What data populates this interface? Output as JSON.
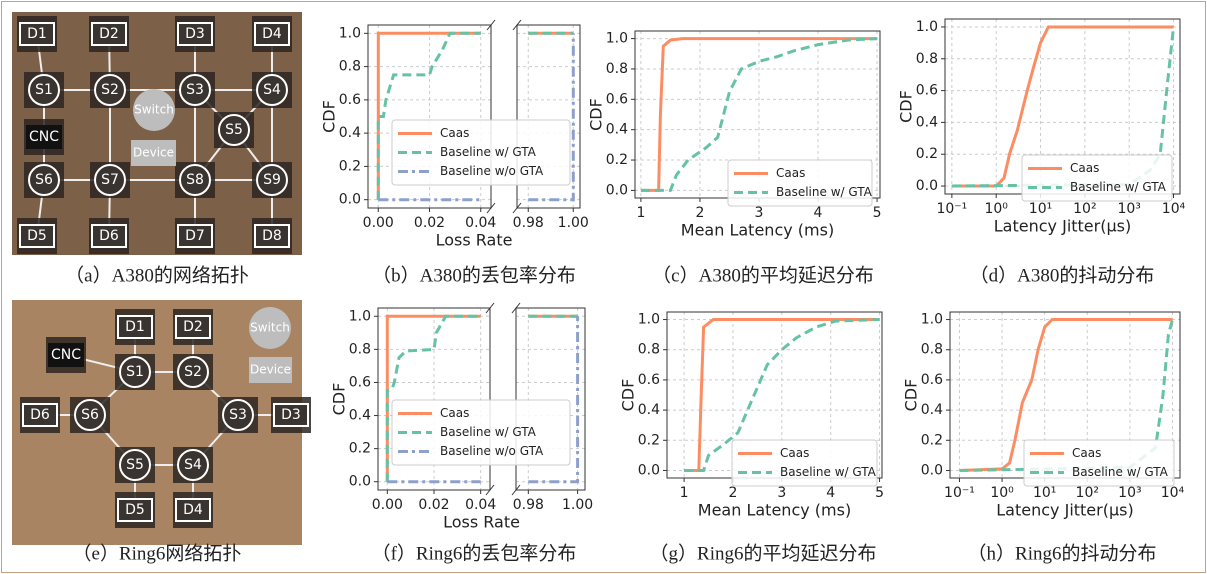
{
  "topologies": [
    {
      "caption": "（a）A380的网络拓扑",
      "nodes": [
        "D1",
        "D2",
        "D3",
        "D4",
        "S1",
        "S2",
        "S3",
        "S4",
        "CNC",
        "S5",
        "S6",
        "S7",
        "S8",
        "S9",
        "D5",
        "D6",
        "D7",
        "D8"
      ],
      "legend": [
        "Switch",
        "Device"
      ]
    },
    {
      "caption": "（e）Ring6网络拓扑",
      "nodes": [
        "D1",
        "D2",
        "CNC",
        "S1",
        "S2",
        "D6",
        "S6",
        "S3",
        "D3",
        "S5",
        "S4",
        "D5",
        "D4"
      ],
      "legend": [
        "Switch",
        "Device"
      ]
    }
  ],
  "chart_data": [
    {
      "type": "line",
      "caption": "（b）A380的丢包率分布",
      "xlabel": "Loss Rate",
      "ylabel": "CDF",
      "xlim": [
        -0.004,
        1.003
      ],
      "xbreak": [
        0.044,
        0.975
      ],
      "xticks": [
        {
          "value": 0,
          "label": "0.00"
        },
        0.02,
        0.04,
        0.98,
        {
          "value": 1,
          "label": "1.00"
        }
      ],
      "ylim": [
        -0.05,
        1.05
      ],
      "yticks": [
        {
          "value": 0,
          "label": "0.0"
        },
        0.2,
        0.4,
        0.6,
        0.8,
        {
          "value": 1,
          "label": "1.0"
        }
      ],
      "grid": true,
      "series": [
        {
          "name": "Caas",
          "color": "#fc8d62",
          "linestyle": "solid",
          "x": [
            0,
            0,
            0.04,
            0.98,
            1
          ],
          "values": [
            0,
            1,
            1,
            1,
            1
          ]
        },
        {
          "name": "Baseline w/ GTA",
          "color": "#66c2a5",
          "linestyle": "dashed",
          "x": [
            0,
            0,
            0.002,
            0.003,
            0.004,
            0.006,
            0.02,
            0.021,
            0.025,
            0.028,
            0.04,
            0.98,
            1
          ],
          "values": [
            0,
            0.5,
            0.5,
            0.6,
            0.65,
            0.75,
            0.75,
            0.8,
            0.9,
            1,
            1,
            1,
            1
          ]
        },
        {
          "name": "Baseline w/o GTA",
          "color": "#8da0cb",
          "linestyle": "dashdot",
          "x": [
            0,
            0.04,
            0.98,
            1,
            1
          ],
          "values": [
            0,
            0,
            0,
            0,
            1
          ]
        }
      ]
    },
    {
      "type": "line",
      "caption": "（c）A380的平均延迟分布",
      "xlabel": "Mean Latency (ms)",
      "ylabel": "CDF",
      "xlim": [
        0.9,
        5.05
      ],
      "xticks": [
        1,
        2,
        3,
        4,
        5
      ],
      "ylim": [
        -0.05,
        1.05
      ],
      "yticks": [
        {
          "value": 0,
          "label": "0.0"
        },
        0.2,
        0.4,
        0.6,
        0.8,
        {
          "value": 1,
          "label": "1.0"
        }
      ],
      "grid": true,
      "series": [
        {
          "name": "Caas",
          "color": "#fc8d62",
          "linestyle": "solid",
          "x": [
            1,
            1.3,
            1.33,
            1.38,
            1.5,
            1.7,
            5
          ],
          "values": [
            0,
            0,
            0.5,
            0.95,
            0.99,
            1,
            1
          ]
        },
        {
          "name": "Baseline w/ GTA",
          "color": "#66c2a5",
          "linestyle": "dashed",
          "x": [
            1,
            1.5,
            1.6,
            1.8,
            2.1,
            2.3,
            2.4,
            2.5,
            2.7,
            3,
            3.3,
            3.6,
            4,
            4.5,
            5
          ],
          "values": [
            0,
            0,
            0.1,
            0.2,
            0.28,
            0.35,
            0.5,
            0.65,
            0.8,
            0.85,
            0.88,
            0.92,
            0.96,
            0.99,
            1
          ]
        }
      ]
    },
    {
      "type": "line",
      "caption": "（d）A380的抖动分布",
      "xlabel": "Latency Jitter(μs)",
      "ylabel": "CDF",
      "xscale": "log",
      "xlim": [
        0.07,
        14000
      ],
      "xticks": [
        {
          "value": 0.1,
          "label": "10⁻¹"
        },
        {
          "value": 1,
          "label": "10⁰"
        },
        {
          "value": 10,
          "label": "10¹"
        },
        {
          "value": 100,
          "label": "10²"
        },
        {
          "value": 1000,
          "label": "10³"
        },
        {
          "value": 10000,
          "label": "10⁴"
        }
      ],
      "ylim": [
        -0.05,
        1.05
      ],
      "yticks": [
        {
          "value": 0,
          "label": "0.0"
        },
        0.2,
        0.4,
        0.6,
        0.8,
        {
          "value": 1,
          "label": "1.0"
        }
      ],
      "grid": true,
      "series": [
        {
          "name": "Caas",
          "color": "#fc8d62",
          "linestyle": "solid",
          "x": [
            0.1,
            1,
            1.5,
            2,
            3,
            5,
            7,
            10,
            15,
            10000
          ],
          "values": [
            0,
            0,
            0.05,
            0.2,
            0.35,
            0.6,
            0.75,
            0.9,
            1,
            1
          ]
        },
        {
          "name": "Baseline w/ GTA",
          "color": "#66c2a5",
          "linestyle": "dashed",
          "x": [
            0.1,
            1000,
            3000,
            5000,
            7000,
            10000
          ],
          "values": [
            0,
            0.01,
            0.1,
            0.2,
            0.6,
            1
          ]
        }
      ]
    },
    {
      "type": "line",
      "caption": "（f）Ring6的丢包率分布",
      "xlabel": "Loss Rate",
      "ylabel": "CDF",
      "xlim": [
        -0.004,
        1.003
      ],
      "xbreak": [
        0.044,
        0.975
      ],
      "xticks": [
        {
          "value": 0,
          "label": "0.00"
        },
        0.02,
        0.04,
        0.98,
        {
          "value": 1,
          "label": "1.00"
        }
      ],
      "ylim": [
        -0.05,
        1.05
      ],
      "yticks": [
        {
          "value": 0,
          "label": "0.0"
        },
        0.2,
        0.4,
        0.6,
        0.8,
        {
          "value": 1,
          "label": "1.0"
        }
      ],
      "grid": true,
      "series": [
        {
          "name": "Caas",
          "color": "#fc8d62",
          "linestyle": "solid",
          "x": [
            0,
            0,
            0.04,
            0.98,
            1
          ],
          "values": [
            0,
            1,
            1,
            1,
            1
          ]
        },
        {
          "name": "Baseline w/ GTA",
          "color": "#66c2a5",
          "linestyle": "dashed",
          "x": [
            0,
            0,
            0.002,
            0.003,
            0.005,
            0.008,
            0.02,
            0.021,
            0.023,
            0.025,
            0.04,
            0.98,
            1
          ],
          "values": [
            0,
            0.55,
            0.56,
            0.6,
            0.75,
            0.79,
            0.8,
            0.9,
            0.95,
            1,
            1,
            1,
            1
          ]
        },
        {
          "name": "Baseline w/o GTA",
          "color": "#8da0cb",
          "linestyle": "dashdot",
          "x": [
            0,
            0.04,
            0.98,
            1,
            1
          ],
          "values": [
            0,
            0,
            0,
            0,
            1
          ]
        }
      ]
    },
    {
      "type": "line",
      "caption": "（g）Ring6的平均延迟分布",
      "xlabel": "Mean Latency (ms)",
      "ylabel": "CDF",
      "xlim": [
        0.65,
        5.05
      ],
      "xticks": [
        1,
        2,
        3,
        4,
        5
      ],
      "ylim": [
        -0.05,
        1.05
      ],
      "yticks": [
        {
          "value": 0,
          "label": "0.0"
        },
        0.2,
        0.4,
        0.6,
        0.8,
        {
          "value": 1,
          "label": "1.0"
        }
      ],
      "grid": true,
      "series": [
        {
          "name": "Caas",
          "color": "#fc8d62",
          "linestyle": "solid",
          "x": [
            1,
            1.3,
            1.35,
            1.4,
            1.6,
            5
          ],
          "values": [
            0,
            0,
            0.5,
            0.95,
            1,
            1
          ]
        },
        {
          "name": "Baseline w/ GTA",
          "color": "#66c2a5",
          "linestyle": "dashed",
          "x": [
            1,
            1.4,
            1.5,
            1.8,
            2.1,
            2.3,
            2.5,
            2.7,
            3,
            3.3,
            3.7,
            4.1,
            5
          ],
          "values": [
            0,
            0,
            0.1,
            0.17,
            0.25,
            0.4,
            0.55,
            0.7,
            0.8,
            0.88,
            0.95,
            0.99,
            1
          ]
        }
      ]
    },
    {
      "type": "line",
      "caption": "（h）Ring6的抖动分布",
      "xlabel": "Latency Jitter(μs)",
      "ylabel": "CDF",
      "xscale": "log",
      "xlim": [
        0.06,
        15000
      ],
      "xticks": [
        {
          "value": 0.1,
          "label": "10⁻¹"
        },
        {
          "value": 1,
          "label": "10⁰"
        },
        {
          "value": 10,
          "label": "10¹"
        },
        {
          "value": 100,
          "label": "10²"
        },
        {
          "value": 1000,
          "label": "10³"
        },
        {
          "value": 10000,
          "label": "10⁴"
        }
      ],
      "ylim": [
        -0.05,
        1.05
      ],
      "yticks": [
        {
          "value": 0,
          "label": "0.0"
        },
        0.2,
        0.4,
        0.6,
        0.8,
        {
          "value": 1,
          "label": "1.0"
        }
      ],
      "grid": true,
      "series": [
        {
          "name": "Caas",
          "color": "#fc8d62",
          "linestyle": "solid",
          "x": [
            0.1,
            1,
            1.5,
            2,
            3,
            5,
            7,
            10,
            15,
            10000
          ],
          "values": [
            0,
            0.01,
            0.05,
            0.2,
            0.45,
            0.6,
            0.8,
            0.95,
            1,
            1
          ]
        },
        {
          "name": "Baseline w/ GTA",
          "color": "#66c2a5",
          "linestyle": "dashed",
          "x": [
            0.1,
            1000,
            4000,
            6000,
            8000,
            10000
          ],
          "values": [
            0,
            0.02,
            0.15,
            0.5,
            0.9,
            1
          ]
        }
      ]
    }
  ]
}
